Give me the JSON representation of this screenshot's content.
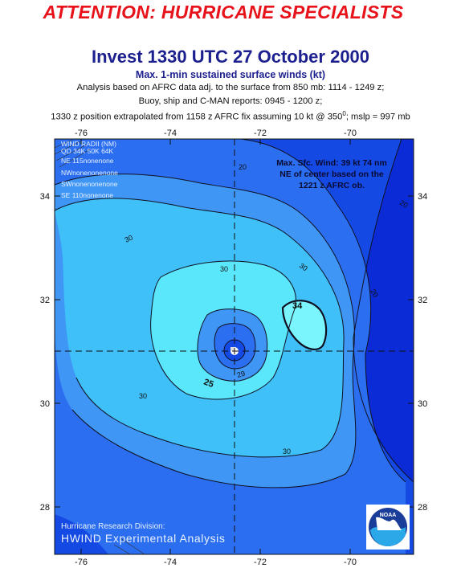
{
  "header": {
    "attention": "ATTENTION: HURRICANE SPECIALISTS",
    "title": "Invest 1330 UTC 27 October 2000",
    "subtitle": "Max. 1-min sustained surface winds (kt)",
    "line1": "Analysis based on AFRC data adj. to the surface from 850 mb: 1114 - 1249 z;",
    "line2": "Buoy, ship and C-MAN reports: 0945 - 1200 z;",
    "line3": "1330 z position extrapolated from 1158 z AFRC fix assuming 10 kt @ 350",
    "line3_sup": "0",
    "line3_end": "; mslp = 997 mb"
  },
  "map": {
    "lon_ticks": [
      "-76",
      "-74",
      "-72",
      "-70"
    ],
    "lat_ticks": [
      "34",
      "32",
      "30",
      "28"
    ],
    "wind_radii": {
      "title": "WIND RADII (NM)",
      "header": "QD 34K 50K 64K",
      "rows": [
        "NE 115nonenone",
        "NWnonenonenone",
        "SWnonenonenone",
        "SE 110nonenone"
      ]
    },
    "max_wind": [
      "Max. Sfc. Wind: 39 kt 74 nm",
      "NE of center based on the",
      "1221 z AFRC ob."
    ],
    "contour_labels": [
      "20",
      "30",
      "30",
      "30",
      "30",
      "30",
      "20",
      "34",
      "25",
      "29",
      "20"
    ],
    "credit1": "Hurricane Research Division:",
    "credit2": "HWIND Experimental Analysis",
    "logo_text": "NOAA",
    "colors": {
      "c10": "#0a2bd6",
      "c15": "#1549e4",
      "c20": "#2b6ff0",
      "c25": "#3f96f5",
      "c30": "#3fc0f8",
      "c34": "#5ae6fb",
      "c34in": "#7af5fd"
    }
  }
}
